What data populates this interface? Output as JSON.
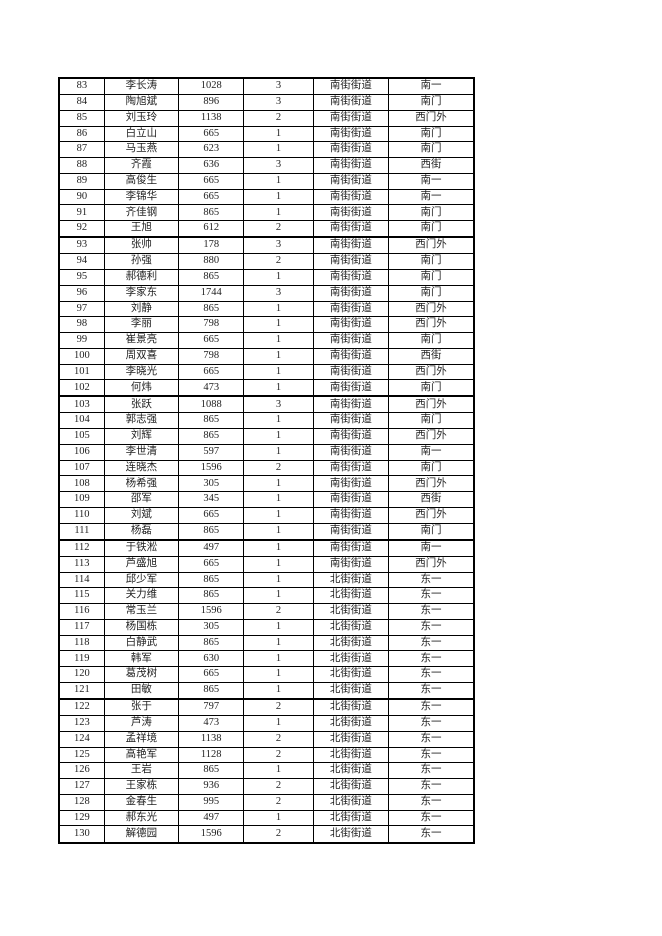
{
  "colors": {
    "background": "#ffffff",
    "border": "#000000",
    "text": "#1f1f1f"
  },
  "table": {
    "thick_border_after": [
      92,
      102,
      111,
      121
    ],
    "rows": [
      [
        83,
        "李长涛",
        1028,
        3,
        "南街街道",
        "南一"
      ],
      [
        84,
        "陶旭斌",
        896,
        3,
        "南街街道",
        "南门"
      ],
      [
        85,
        "刘玉玲",
        1138,
        2,
        "南街街道",
        "西门外"
      ],
      [
        86,
        "白立山",
        665,
        1,
        "南街街道",
        "南门"
      ],
      [
        87,
        "马玉燕",
        623,
        1,
        "南街街道",
        "南门"
      ],
      [
        88,
        "齐霞",
        636,
        3,
        "南街街道",
        "西街"
      ],
      [
        89,
        "高俊生",
        665,
        1,
        "南街街道",
        "南一"
      ],
      [
        90,
        "李锦华",
        665,
        1,
        "南街街道",
        "南一"
      ],
      [
        91,
        "齐佳钢",
        865,
        1,
        "南街街道",
        "南门"
      ],
      [
        92,
        "王旭",
        612,
        2,
        "南街街道",
        "南门"
      ],
      [
        93,
        "张帅",
        178,
        3,
        "南街街道",
        "西门外"
      ],
      [
        94,
        "孙强",
        880,
        2,
        "南街街道",
        "南门"
      ],
      [
        95,
        "郝德利",
        865,
        1,
        "南街街道",
        "南门"
      ],
      [
        96,
        "李家东",
        1744,
        3,
        "南街街道",
        "南门"
      ],
      [
        97,
        "刘静",
        865,
        1,
        "南街街道",
        "西门外"
      ],
      [
        98,
        "李丽",
        798,
        1,
        "南街街道",
        "西门外"
      ],
      [
        99,
        "崔景亮",
        665,
        1,
        "南街街道",
        "南门"
      ],
      [
        100,
        "周双喜",
        798,
        1,
        "南街街道",
        "西街"
      ],
      [
        101,
        "李晓光",
        665,
        1,
        "南街街道",
        "西门外"
      ],
      [
        102,
        "何炜",
        473,
        1,
        "南街街道",
        "南门"
      ],
      [
        103,
        "张跃",
        1088,
        3,
        "南街街道",
        "西门外"
      ],
      [
        104,
        "郭志强",
        865,
        1,
        "南街街道",
        "南门"
      ],
      [
        105,
        "刘辉",
        865,
        1,
        "南街街道",
        "西门外"
      ],
      [
        106,
        "李世清",
        597,
        1,
        "南街街道",
        "南一"
      ],
      [
        107,
        "连晓杰",
        1596,
        2,
        "南街街道",
        "南门"
      ],
      [
        108,
        "杨希强",
        305,
        1,
        "南街街道",
        "西门外"
      ],
      [
        109,
        "邵军",
        345,
        1,
        "南街街道",
        "西街"
      ],
      [
        110,
        "刘斌",
        665,
        1,
        "南街街道",
        "西门外"
      ],
      [
        111,
        "杨磊",
        865,
        1,
        "南街街道",
        "南门"
      ],
      [
        112,
        "于铁淞",
        497,
        1,
        "南街街道",
        "南一"
      ],
      [
        113,
        "芦盛旭",
        665,
        1,
        "南街街道",
        "西门外"
      ],
      [
        114,
        "邱少军",
        865,
        1,
        "北街街道",
        "东一"
      ],
      [
        115,
        "关力维",
        865,
        1,
        "北街街道",
        "东一"
      ],
      [
        116,
        "常玉兰",
        1596,
        2,
        "北街街道",
        "东一"
      ],
      [
        117,
        "杨国栋",
        305,
        1,
        "北街街道",
        "东一"
      ],
      [
        118,
        "白静武",
        865,
        1,
        "北街街道",
        "东一"
      ],
      [
        119,
        "韩军",
        630,
        1,
        "北街街道",
        "东一"
      ],
      [
        120,
        "葛茂树",
        665,
        1,
        "北街街道",
        "东一"
      ],
      [
        121,
        "田敏",
        865,
        1,
        "北街街道",
        "东一"
      ],
      [
        122,
        "张于",
        797,
        2,
        "北街街道",
        "东一"
      ],
      [
        123,
        "芦涛",
        473,
        1,
        "北街街道",
        "东一"
      ],
      [
        124,
        "孟祥境",
        1138,
        2,
        "北街街道",
        "东一"
      ],
      [
        125,
        "高艳军",
        1128,
        2,
        "北街街道",
        "东一"
      ],
      [
        126,
        "王岩",
        865,
        1,
        "北街街道",
        "东一"
      ],
      [
        127,
        "王家栋",
        936,
        2,
        "北街街道",
        "东一"
      ],
      [
        128,
        "金春生",
        995,
        2,
        "北街街道",
        "东一"
      ],
      [
        129,
        "郝东光",
        497,
        1,
        "北街街道",
        "东一"
      ],
      [
        130,
        "解德园",
        1596,
        2,
        "北街街道",
        "东一"
      ]
    ]
  }
}
